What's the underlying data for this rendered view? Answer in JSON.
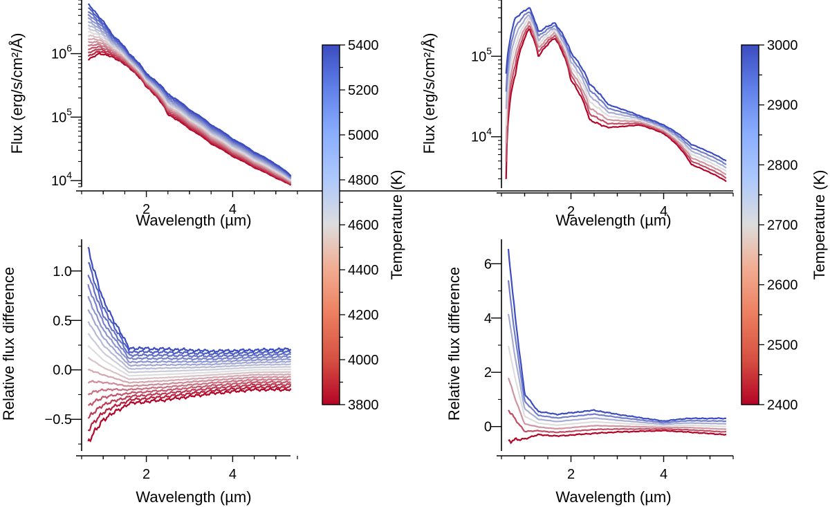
{
  "chart_data": [
    {
      "id": "top-left",
      "type": "line",
      "xlabel": "Wavelength (µm)",
      "ylabel": "Flux (erg/s/cm²/Å)",
      "yscale": "log",
      "xlim": [
        0.5,
        5.5
      ],
      "ylim": [
        8000,
        7000000
      ],
      "xticks": [
        2,
        4
      ],
      "yticks": [
        {
          "value": 1000000,
          "base": "10",
          "exp": "6"
        },
        {
          "value": 100000,
          "base": "10",
          "exp": "5"
        },
        {
          "value": 10000,
          "base": "10",
          "exp": "4"
        }
      ],
      "series_summary": {
        "temperatures_K": [
          3800,
          3900,
          4000,
          4100,
          4200,
          4300,
          4400,
          4500,
          4600,
          4700,
          4800,
          4900,
          5000,
          5100,
          5200,
          5300,
          5400
        ],
        "x": [
          0.65,
          0.9,
          1.2,
          1.6,
          2.0,
          2.5,
          3.0,
          3.5,
          4.0,
          4.5,
          5.0,
          5.35
        ],
        "flux_coolest": [
          800000,
          1000000,
          900000,
          600000,
          300000,
          110000,
          65000,
          38000,
          24000,
          16000,
          11000,
          8500
        ],
        "flux_hottest": [
          6000000,
          3800000,
          2000000,
          1000000,
          480000,
          230000,
          130000,
          75000,
          45000,
          28000,
          18000,
          12000
        ]
      }
    },
    {
      "id": "bottom-left",
      "type": "line",
      "xlabel": "Wavelength (µm)",
      "ylabel": "Relative flux difference",
      "xlim": [
        0.5,
        5.5
      ],
      "ylim": [
        -0.82,
        1.32
      ],
      "xticks": [
        2,
        4
      ],
      "yticks": [
        {
          "value": 1.0,
          "label": "1.0"
        },
        {
          "value": 0.5,
          "label": "0.5"
        },
        {
          "value": 0.0,
          "label": "0.0"
        },
        {
          "value": -0.5,
          "label": "−0.5"
        }
      ],
      "series_summary": {
        "temperatures_K": [
          3800,
          3900,
          4000,
          4100,
          4200,
          4300,
          4400,
          4500,
          4600,
          4700,
          4800,
          4900,
          5000,
          5100,
          5200,
          5300,
          5400
        ],
        "x": [
          0.65,
          1.0,
          1.6,
          2.5,
          3.5,
          4.5,
          5.35
        ],
        "diff_coolest": [
          -0.73,
          -0.5,
          -0.34,
          -0.3,
          -0.24,
          -0.2,
          -0.2
        ],
        "diff_hottest": [
          1.22,
          0.7,
          0.22,
          0.21,
          0.19,
          0.2,
          0.21
        ]
      }
    },
    {
      "id": "top-right",
      "type": "line",
      "xlabel": "Wavelength (µm)",
      "ylabel": "Flux (erg/s/cm²/Å)",
      "yscale": "log",
      "xlim": [
        0.5,
        5.5
      ],
      "ylim": [
        2300,
        500000
      ],
      "xticks": [
        2,
        4
      ],
      "yticks": [
        {
          "value": 100000,
          "base": "10",
          "exp": "5"
        },
        {
          "value": 10000,
          "base": "10",
          "exp": "4"
        }
      ],
      "series_summary": {
        "temperatures_K": [
          2400,
          2500,
          2600,
          2700,
          2800,
          2900,
          3000
        ],
        "x": [
          0.6,
          0.8,
          1.1,
          1.3,
          1.65,
          2.0,
          2.4,
          2.8,
          3.5,
          4.0,
          4.6,
          5.35
        ],
        "flux_coolest": [
          3000,
          60000,
          220000,
          100000,
          170000,
          50000,
          16000,
          13000,
          14000,
          11000,
          4500,
          2800
        ],
        "flux_hottest": [
          60000,
          300000,
          400000,
          200000,
          260000,
          110000,
          45000,
          25000,
          18000,
          14000,
          8000,
          5000
        ]
      }
    },
    {
      "id": "bottom-right",
      "type": "line",
      "xlabel": "Wavelength (µm)",
      "ylabel": "Relative flux difference",
      "xlim": [
        0.5,
        5.5
      ],
      "ylim": [
        -0.9,
        6.9
      ],
      "xticks": [
        2,
        4
      ],
      "yticks": [
        {
          "value": 6,
          "label": "6"
        },
        {
          "value": 4,
          "label": "4"
        },
        {
          "value": 2,
          "label": "2"
        },
        {
          "value": 0,
          "label": "0"
        }
      ],
      "series_summary": {
        "temperatures_K": [
          2400,
          2500,
          2600,
          2700,
          2800,
          2900,
          3000
        ],
        "x": [
          0.65,
          0.8,
          1.0,
          1.3,
          1.7,
          2.5,
          3.0,
          4.0,
          4.5,
          5.35
        ],
        "diff_coolest": [
          -0.55,
          -0.5,
          -0.45,
          -0.3,
          -0.35,
          -0.25,
          -0.2,
          -0.15,
          -0.2,
          -0.3
        ],
        "diff_hottest": [
          6.5,
          4.0,
          1.2,
          0.55,
          0.45,
          0.6,
          0.45,
          0.2,
          0.3,
          0.3
        ]
      }
    }
  ],
  "colorbars": [
    {
      "id": "left",
      "label": "Temperature (K)",
      "min": 3800,
      "max": 5400,
      "ticks": [
        "5400",
        "5200",
        "5000",
        "4800",
        "4600",
        "4400",
        "4200",
        "4000",
        "3800"
      ]
    },
    {
      "id": "right",
      "label": "Temperature (K)",
      "min": 2400,
      "max": 3000,
      "ticks": [
        "3000",
        "2900",
        "2800",
        "2700",
        "2600",
        "2500",
        "2400"
      ]
    }
  ],
  "colormap": {
    "name": "coolwarm_r",
    "cold_end": "#3b4cc0",
    "mid": "#dddddd",
    "warm_end": "#b40426"
  }
}
